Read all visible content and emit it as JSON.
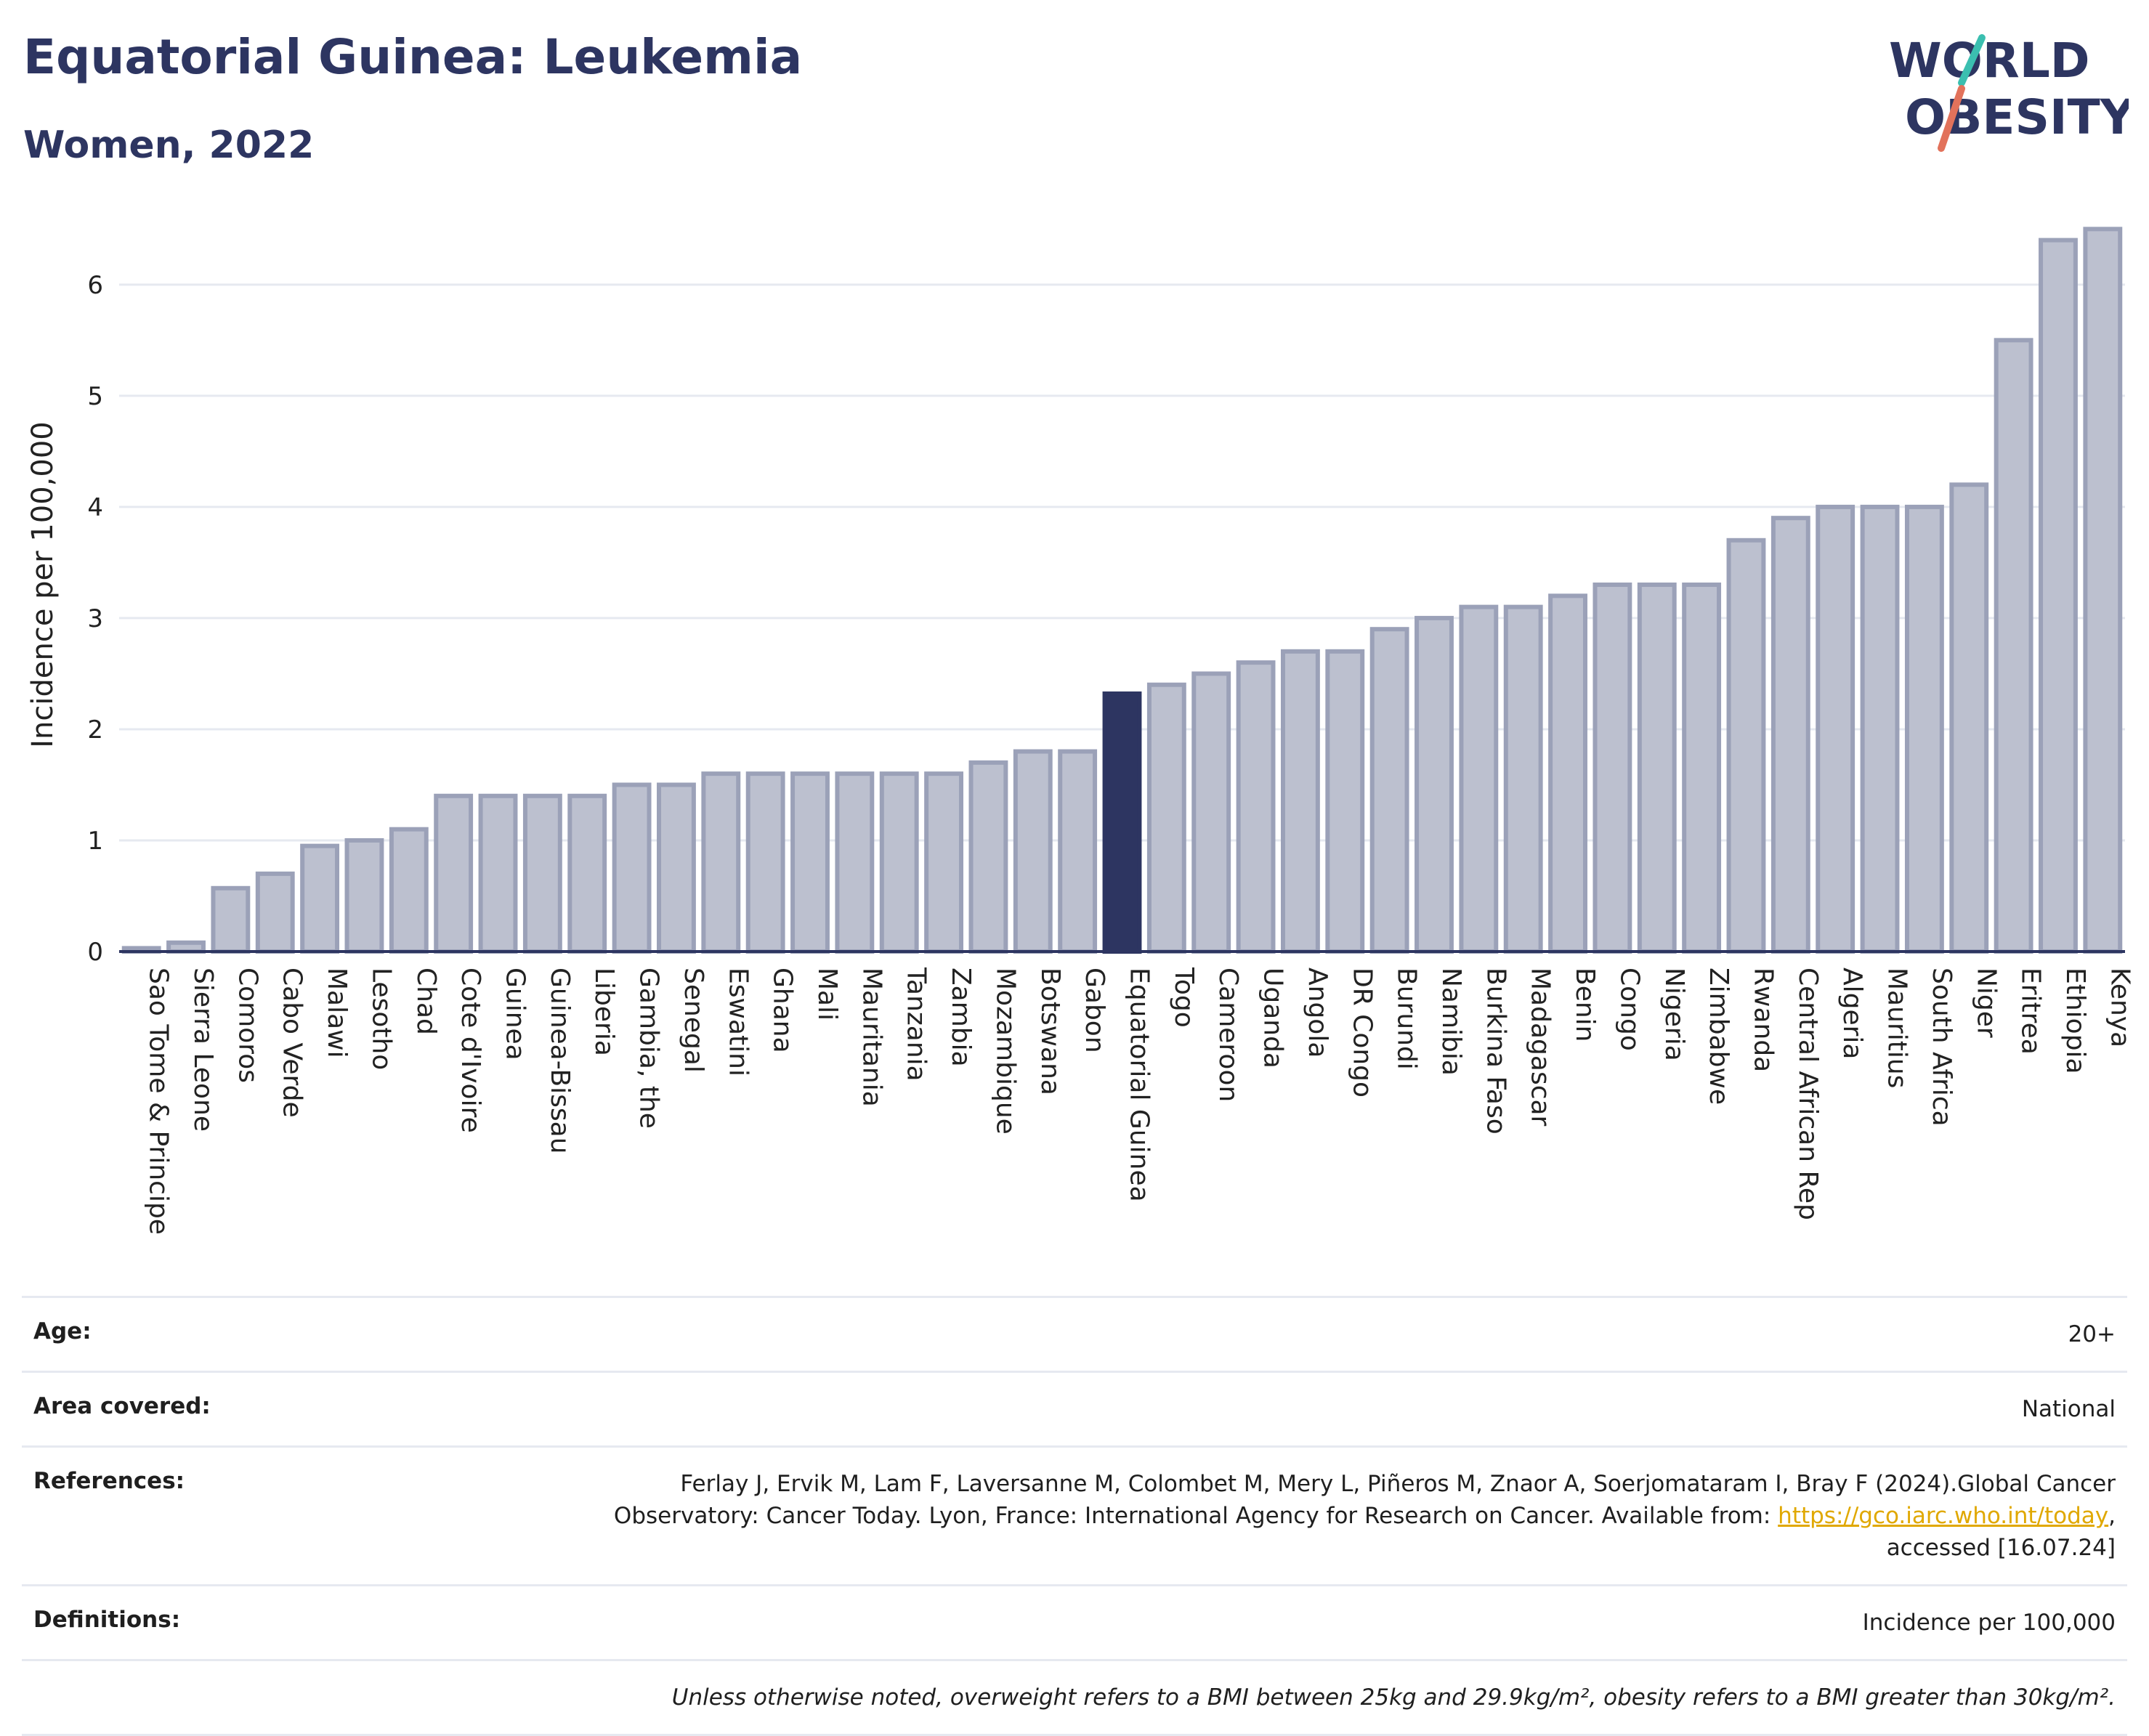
{
  "header": {
    "title": "Equatorial Guinea: Leukemia",
    "subtitle": "Women, 2022"
  },
  "logo": {
    "line1": "WORLD",
    "line2": "OBESITY",
    "slash_colors": [
      "#3bbfb0",
      "#e2725b"
    ]
  },
  "colors": {
    "highlight": "#2d3561",
    "bar_fill": "#bcc0cf",
    "bar_stroke": "#9ba1b8",
    "axis": "#2d3561",
    "grid": "#e6e9f0"
  },
  "chart_data": {
    "type": "bar",
    "title": "Equatorial Guinea: Leukemia",
    "subtitle": "Women, 2022",
    "xlabel": "",
    "ylabel": "Incidence per 100,000",
    "ylim": [
      0,
      6.6
    ],
    "yticks": [
      0,
      1,
      2,
      3,
      4,
      5,
      6
    ],
    "grid": true,
    "highlight": "Equatorial Guinea",
    "categories": [
      "Sao Tome & Principe",
      "Sierra Leone",
      "Comoros",
      "Cabo Verde",
      "Malawi",
      "Lesotho",
      "Chad",
      "Cote d'Ivoire",
      "Guinea",
      "Guinea-Bissau",
      "Liberia",
      "Gambia, the",
      "Senegal",
      "Eswatini",
      "Ghana",
      "Mali",
      "Mauritania",
      "Tanzania",
      "Zambia",
      "Mozambique",
      "Botswana",
      "Gabon",
      "Equatorial Guinea",
      "Togo",
      "Cameroon",
      "Uganda",
      "Angola",
      "DR Congo",
      "Burundi",
      "Namibia",
      "Burkina Faso",
      "Madagascar",
      "Benin",
      "Congo",
      "Nigeria",
      "Zimbabwe",
      "Rwanda",
      "Central African Rep",
      "Algeria",
      "Mauritius",
      "South Africa",
      "Niger",
      "Eritrea",
      "Ethiopia",
      "Kenya"
    ],
    "values": [
      0.03,
      0.08,
      0.57,
      0.7,
      0.95,
      1.0,
      1.1,
      1.4,
      1.4,
      1.4,
      1.4,
      1.5,
      1.5,
      1.6,
      1.6,
      1.6,
      1.6,
      1.6,
      1.6,
      1.7,
      1.8,
      1.8,
      2.32,
      2.4,
      2.5,
      2.6,
      2.7,
      2.7,
      2.9,
      3.0,
      3.1,
      3.1,
      3.2,
      3.3,
      3.3,
      3.3,
      3.7,
      3.9,
      4.0,
      4.0,
      4.0,
      4.2,
      5.5,
      6.4,
      6.5
    ]
  },
  "meta": {
    "age_label": "Age:",
    "age_value": "20+",
    "area_label": "Area covered:",
    "area_value": "National",
    "references_label": "References:",
    "references_line1": "Ferlay J, Ervik M, Lam F, Laversanne M, Colombet M, Mery L, Piñeros M, Znaor A, Soerjomataram I, Bray F (2024).Global Cancer",
    "references_line2_prefix": "Observatory: Cancer Today. Lyon, France: International Agency for Research on Cancer. Available from:",
    "references_link": "https://gco.iarc.who.int/today",
    "references_line2_suffix": ",",
    "references_line3": "accessed [16.07.24]",
    "definitions_label": "Definitions:",
    "definitions_value": "Incidence per 100,000",
    "note": "Unless otherwise noted, overweight refers to a BMI between 25kg and 29.9kg/m², obesity refers to a BMI greater than 30kg/m²."
  }
}
